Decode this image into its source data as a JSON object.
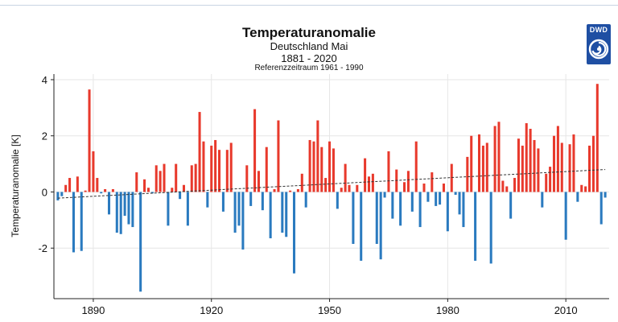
{
  "header": {
    "title": "Temperaturanomalie",
    "subtitle": "Deutschland Mai",
    "period": "1881 - 2020",
    "reference": "Referenzzeitraum 1961 - 1990"
  },
  "logo": {
    "text": "DWD",
    "icon": "dwd-swirl-icon"
  },
  "colors": {
    "positive": "#e8392c",
    "negative": "#2a7abf",
    "trend": "#333333",
    "logo": "#1f4fa3"
  },
  "chart_data": {
    "type": "bar",
    "title": "Temperaturanomalie",
    "ylabel": "Temperaturanomalie [K]",
    "xlabel": "",
    "xlim": [
      1880,
      2021
    ],
    "ylim": [
      -3.8,
      4.2
    ],
    "x_ticks": [
      1890,
      1920,
      1950,
      1980,
      2010
    ],
    "y_ticks": [
      4,
      2,
      0,
      -2
    ],
    "grid": true,
    "legend": "none",
    "trend": {
      "type": "linear",
      "start": [
        1881,
        -0.22
      ],
      "end": [
        2020,
        0.8
      ]
    },
    "years": [
      1881,
      2020
    ],
    "values": [
      -0.3,
      -0.15,
      0.25,
      0.5,
      -2.15,
      0.55,
      -2.1,
      0.05,
      3.65,
      1.45,
      0.5,
      -0.05,
      0.1,
      -0.8,
      0.1,
      -1.45,
      -1.5,
      -0.85,
      -1.15,
      -1.25,
      0.7,
      -3.55,
      0.45,
      0.15,
      -0.05,
      0.95,
      0.75,
      1.0,
      -1.2,
      0.15,
      1.0,
      -0.25,
      0.25,
      -1.2,
      0.95,
      1.0,
      2.85,
      1.8,
      -0.55,
      1.65,
      1.85,
      1.5,
      -0.7,
      1.5,
      1.75,
      -1.45,
      -1.2,
      -2.05,
      0.95,
      -0.5,
      2.95,
      0.75,
      -0.65,
      1.6,
      -1.65,
      0.1,
      2.55,
      -1.45,
      -1.6,
      0.05,
      -2.9,
      0.1,
      0.65,
      -0.55,
      1.85,
      1.8,
      2.55,
      1.6,
      0.5,
      1.8,
      1.55,
      -0.6,
      0.15,
      1.0,
      0.25,
      -1.85,
      0.25,
      -2.45,
      1.2,
      0.55,
      0.65,
      -1.85,
      -2.4,
      -0.2,
      1.45,
      -0.95,
      0.8,
      -1.2,
      0.35,
      0.75,
      -0.7,
      1.8,
      -1.25,
      0.3,
      -0.35,
      0.7,
      -0.5,
      -0.45,
      0.3,
      -1.4,
      1.0,
      -0.1,
      -0.8,
      -1.25,
      1.25,
      2.0,
      -2.45,
      2.05,
      1.65,
      1.75,
      -2.55,
      2.35,
      2.5,
      0.4,
      0.2,
      -0.95,
      0.5,
      1.9,
      1.65,
      2.45,
      2.25,
      1.85,
      1.55,
      -0.55,
      0.65,
      0.9,
      2.0,
      2.35,
      1.75,
      -1.7,
      1.7,
      2.05,
      -0.35,
      0.25,
      0.2,
      1.65,
      2.0,
      3.85,
      -1.15,
      -0.2
    ]
  }
}
